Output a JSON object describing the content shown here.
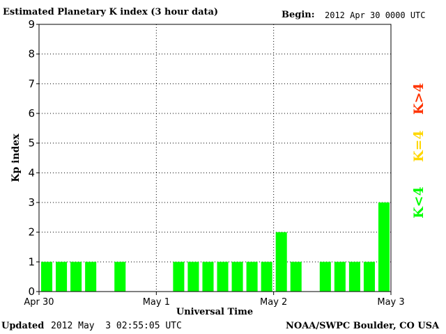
{
  "header": {
    "title": "Estimated Planetary K index (3 hour data)",
    "begin_label": "Begin:",
    "begin_value": "2012 Apr 30 0000 UTC"
  },
  "footer": {
    "updated_label": "Updated",
    "updated_value": "2012 May  3 02:55:05 UTC",
    "credit": "NOAA/SWPC Boulder, CO USA"
  },
  "legend": {
    "items": [
      {
        "label": "K<4",
        "color": "#00ff00"
      },
      {
        "label": "K=4",
        "color": "#ffd700"
      },
      {
        "label": "K>4",
        "color": "#ff3300"
      }
    ]
  },
  "chart_data": {
    "type": "bar",
    "xlabel": "Universal Time",
    "ylabel": "Kp index",
    "ylim": [
      0,
      9
    ],
    "yticks": [
      "0",
      "1",
      "2",
      "3",
      "4",
      "5",
      "6",
      "7",
      "8",
      "9"
    ],
    "x_tick_labels": [
      "Apr 30",
      "May 1",
      "May 2",
      "May 3"
    ],
    "interval_hours": 3,
    "grid": "dotted vertical at day boundaries, dotted horizontal at each Kp level",
    "values": [
      1,
      1,
      1,
      1,
      null,
      1,
      null,
      null,
      null,
      1,
      1,
      1,
      1,
      1,
      1,
      1,
      2,
      1,
      null,
      1,
      1,
      1,
      1,
      3
    ],
    "bar_color": "#00ff00"
  }
}
